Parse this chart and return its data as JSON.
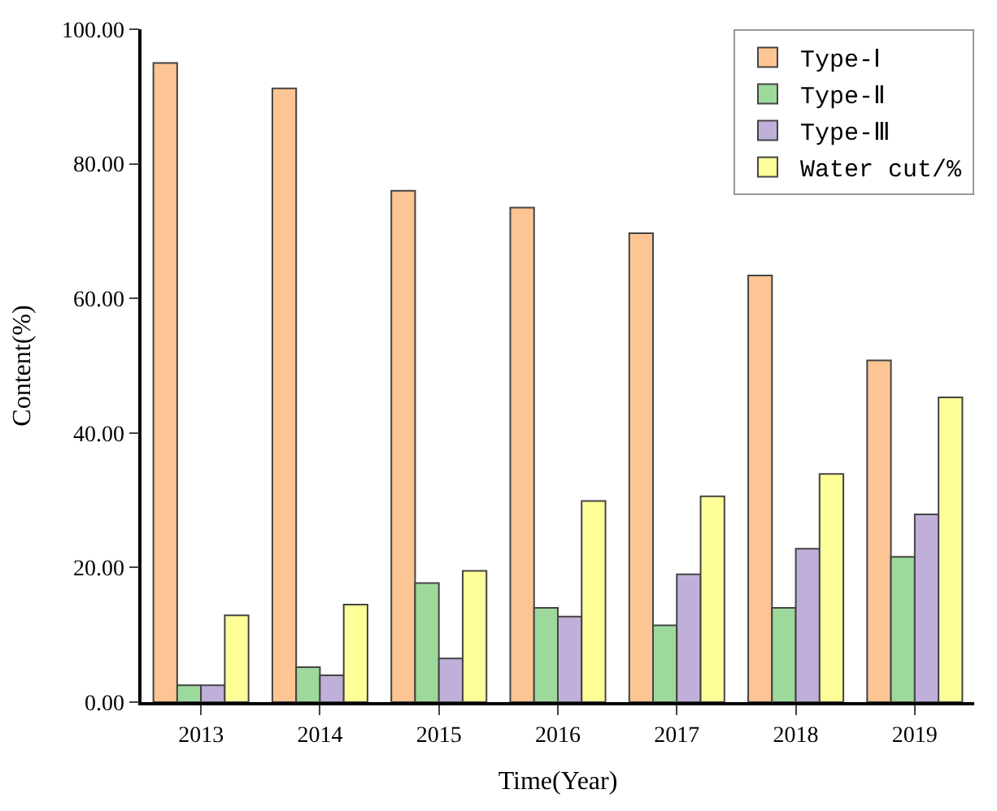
{
  "chart_data": {
    "type": "bar",
    "xlabel": "Time(Year)",
    "ylabel": "Content(%)",
    "categories": [
      "2013",
      "2014",
      "2015",
      "2016",
      "2017",
      "2018",
      "2019"
    ],
    "series": [
      {
        "name": "Type-Ⅰ",
        "color": "#fdc593",
        "values": [
          95.0,
          91.2,
          76.0,
          73.5,
          69.7,
          63.4,
          50.8
        ]
      },
      {
        "name": "Type-Ⅱ",
        "color": "#9ed99c",
        "values": [
          2.5,
          5.2,
          17.7,
          14.0,
          11.4,
          14.0,
          21.6
        ]
      },
      {
        "name": "Type-Ⅲ",
        "color": "#c0b0d9",
        "values": [
          2.5,
          4.0,
          6.5,
          12.7,
          19.0,
          22.8,
          27.9
        ]
      },
      {
        "name": "Water cut/%",
        "color": "#ffff99",
        "values": [
          12.9,
          14.5,
          19.5,
          29.9,
          30.6,
          33.9,
          45.3
        ]
      }
    ],
    "ylim": [
      0,
      100
    ],
    "yticks": [
      {
        "value": 0,
        "label": "0.00"
      },
      {
        "value": 20,
        "label": "20.00"
      },
      {
        "value": 40,
        "label": "40.00"
      },
      {
        "value": 60,
        "label": "60.00"
      },
      {
        "value": 80,
        "label": "80.00"
      },
      {
        "value": 100,
        "label": "100.00"
      }
    ],
    "legend": "top right"
  }
}
